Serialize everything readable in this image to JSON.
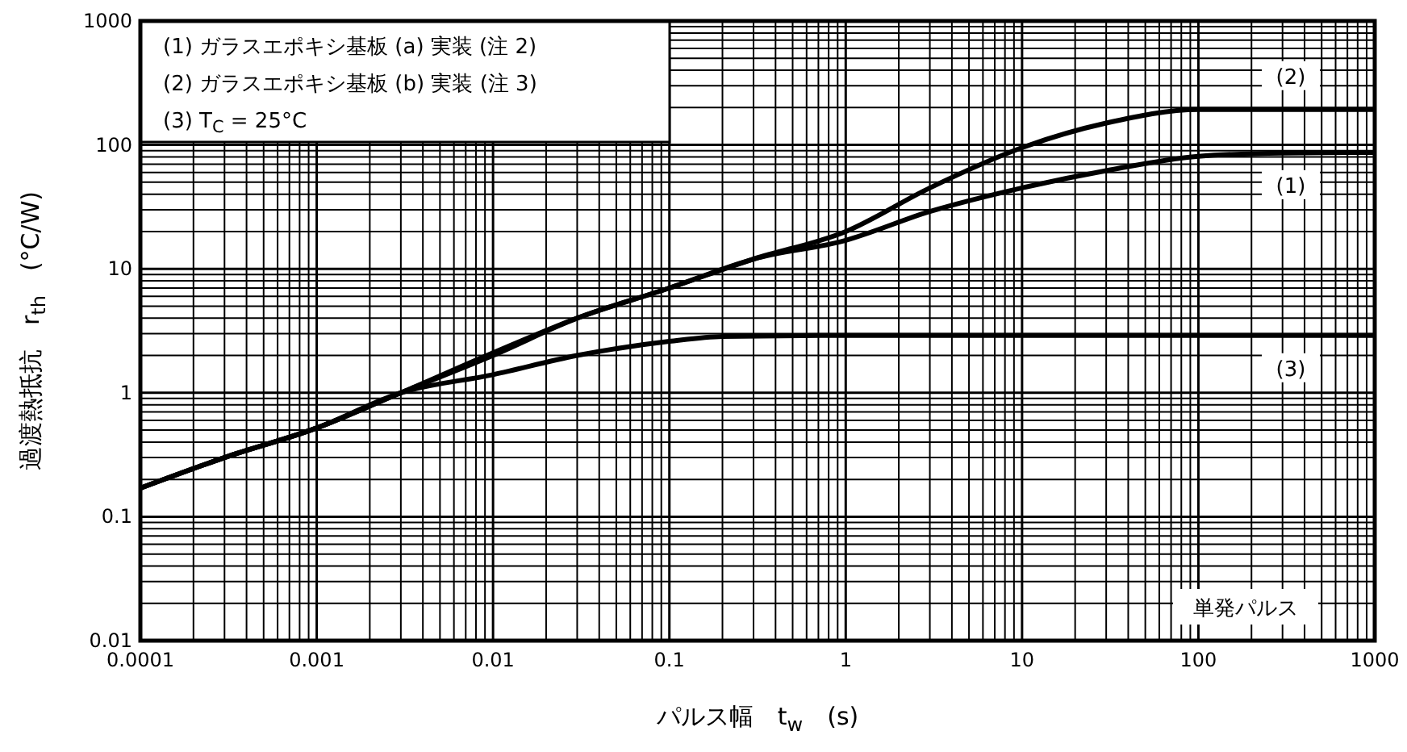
{
  "chart_data": {
    "type": "line",
    "xlabel": "パルス幅　t$_{w}$　(s)",
    "ylabel": "過渡熱抵抗　r$_{th}$　(°C/W)",
    "log": "xy",
    "grid": true,
    "line_style": "solid",
    "marker": "none",
    "xlim": [
      0.0001,
      1000
    ],
    "xticks": [
      0.0001,
      0.001,
      0.01,
      0.1,
      1,
      10,
      100,
      1000
    ],
    "ylim": [
      0.01,
      1000
    ],
    "yticks": [
      0.01,
      0.1,
      1,
      10,
      100,
      1000
    ],
    "series": [
      {
        "name": "(1)",
        "color": "#000000",
        "x": [
          0.0001,
          0.0003,
          0.001,
          0.003,
          0.01,
          0.03,
          0.1,
          0.3,
          1,
          3,
          10,
          30,
          100,
          300,
          1000
        ],
        "values": [
          0.17,
          0.3,
          0.52,
          1.0,
          2.0,
          4,
          7,
          12,
          17,
          29,
          45,
          62,
          81,
          86,
          87
        ]
      },
      {
        "name": "(2)",
        "color": "#000000",
        "x": [
          0.0001,
          0.0003,
          0.001,
          0.003,
          0.01,
          0.03,
          0.1,
          0.3,
          1,
          3,
          10,
          30,
          100,
          300,
          1000
        ],
        "values": [
          0.17,
          0.3,
          0.52,
          1.0,
          2.1,
          4,
          7,
          12,
          20,
          45,
          95,
          150,
          193,
          193,
          193
        ]
      },
      {
        "name": "(3)",
        "color": "#000000",
        "x": [
          0.0001,
          0.0003,
          0.001,
          0.003,
          0.01,
          0.03,
          0.1,
          0.2,
          1,
          10,
          100,
          1000
        ],
        "values": [
          0.17,
          0.3,
          0.52,
          1.0,
          1.4,
          2.0,
          2.6,
          2.85,
          2.9,
          2.9,
          2.9,
          2.9
        ]
      }
    ],
    "annotations": [
      "(1) ガラスエポキシ基板 (a) 実装 (注 2)",
      "(2) ガラスエポキシ基板 (b) 実装 (注 3)",
      "(3) T$_{C}$ = 25°C",
      "単発パルス"
    ]
  }
}
